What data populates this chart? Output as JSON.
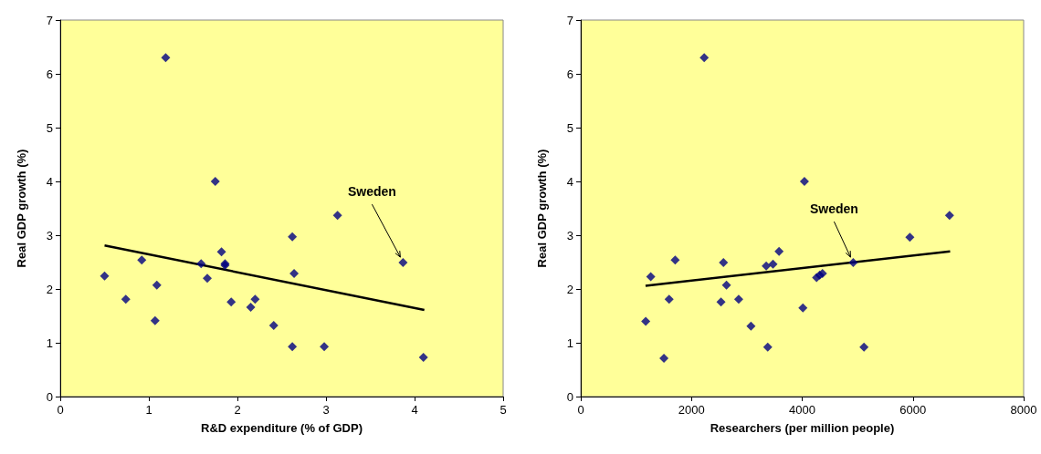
{
  "chart_data": [
    {
      "type": "scatter",
      "xlabel": "R&D expenditure (% of GDP)",
      "ylabel": "Real GDP growth (%)",
      "xlim": [
        0,
        5
      ],
      "xticks": [
        0,
        1,
        2,
        3,
        4,
        5
      ],
      "ylim": [
        0,
        7
      ],
      "yticks": [
        0,
        1,
        2,
        3,
        4,
        5,
        6,
        7
      ],
      "grid": false,
      "series": [
        {
          "marker": "diamond",
          "color": "#000080",
          "x": [
            0.5,
            0.74,
            0.92,
            1.09,
            1.07,
            1.19,
            1.59,
            1.66,
            1.75,
            1.82,
            1.86,
            1.86,
            1.93,
            2.15,
            2.2,
            2.41,
            2.62,
            2.64,
            2.62,
            2.98,
            3.13,
            3.87,
            4.1
          ],
          "values": [
            2.24,
            1.81,
            2.54,
            2.07,
            1.41,
            6.3,
            2.47,
            2.2,
            4.0,
            2.69,
            2.47,
            2.44,
            1.76,
            1.66,
            1.81,
            1.32,
            2.97,
            2.29,
            0.93,
            0.93,
            3.37,
            2.49,
            0.73
          ]
        },
        {
          "type": "line",
          "marker": "none",
          "color": "#000000",
          "x": [
            0.5,
            4.11
          ],
          "values": [
            2.81,
            1.61
          ]
        }
      ],
      "annotations": [
        {
          "text": "Sweden",
          "x": 3.87,
          "y": 2.49
        }
      ]
    },
    {
      "type": "scatter",
      "xlabel": "Researchers (per million people)",
      "ylabel": "Real GDP growth (%)",
      "xlim": [
        0,
        8000
      ],
      "xticks": [
        0,
        2000,
        4000,
        6000,
        8000
      ],
      "ylim": [
        0,
        7
      ],
      "yticks": [
        0,
        1,
        2,
        3,
        4,
        5,
        6,
        7
      ],
      "grid": false,
      "series": [
        {
          "marker": "diamond",
          "color": "#000080",
          "x": [
            1173,
            1264,
            1502,
            1596,
            1705,
            2230,
            2533,
            2577,
            2632,
            2853,
            3074,
            3350,
            3377,
            3472,
            3582,
            4012,
            4040,
            4260,
            4316,
            4366,
            4922,
            5116,
            5944,
            6661
          ],
          "values": [
            1.4,
            2.23,
            0.71,
            1.81,
            2.54,
            6.3,
            1.76,
            2.49,
            2.07,
            1.81,
            1.31,
            2.43,
            0.92,
            2.46,
            2.7,
            1.65,
            4.0,
            2.21,
            2.26,
            2.29,
            2.49,
            0.92,
            2.96,
            3.37
          ]
        },
        {
          "type": "line",
          "marker": "none",
          "color": "#000000",
          "x": [
            1170,
            6672
          ],
          "values": [
            2.06,
            2.7
          ]
        }
      ],
      "annotations": [
        {
          "text": "Sweden",
          "x": 4922,
          "y": 2.49
        }
      ]
    }
  ]
}
